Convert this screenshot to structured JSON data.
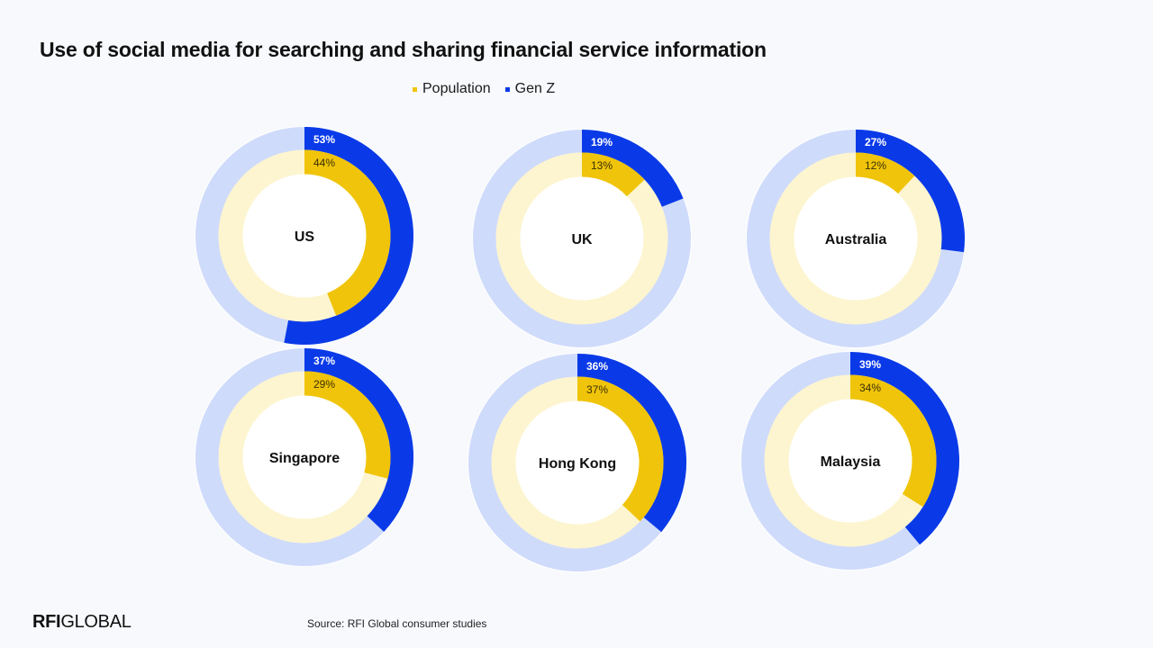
{
  "title": "Use of social media for searching and sharing financial service information",
  "legend": [
    {
      "label": "Population",
      "color": "#f0c40a"
    },
    {
      "label": "Gen Z",
      "color": "#0a3ae8"
    }
  ],
  "colors": {
    "population": "#f0c40a",
    "population_track": "#fdf5d0",
    "genz": "#0a3ae8",
    "genz_track": "#cfdbfb"
  },
  "chart_data": {
    "type": "pie",
    "series": [
      {
        "name": "Population",
        "values": [
          44,
          13,
          12,
          29,
          37,
          34
        ]
      },
      {
        "name": "Gen Z",
        "values": [
          53,
          19,
          27,
          37,
          36,
          39
        ]
      }
    ],
    "categories": [
      "US",
      "UK",
      "Australia",
      "Singapore",
      "Hong Kong",
      "Malaysia"
    ],
    "value_labels": {
      "population": [
        "44%",
        "13%",
        "12%",
        "29%",
        "37%",
        "34%"
      ],
      "genz": [
        "53%",
        "19%",
        "27%",
        "37%",
        "36%",
        "39%"
      ]
    },
    "legend_position": "top-center"
  },
  "footer": {
    "logo_bold": "RFI",
    "logo_rest": "GLOBAL",
    "source": "Source: RFI Global consumer studies"
  }
}
